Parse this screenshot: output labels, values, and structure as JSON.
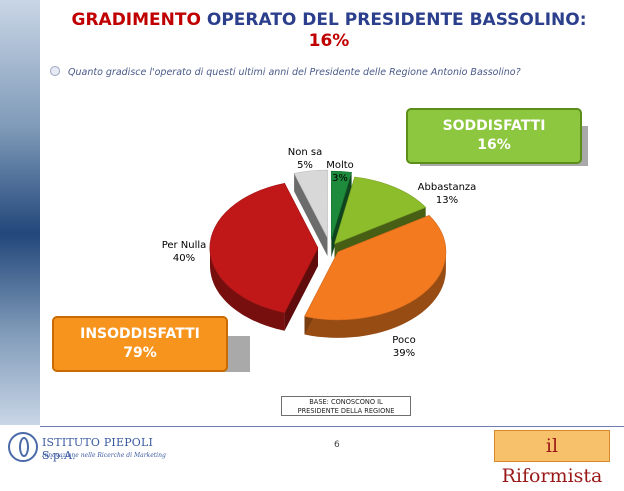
{
  "title": {
    "prefix": "GRADIMENTO",
    "main": " OPERATO DEL PRESIDENTE BASSOLINO:",
    "pct": "16%"
  },
  "question": "Quanto gradisce l'operato di questi ultimi anni del Presidente delle Regione Antonio Bassolino?",
  "soddisfatti": {
    "label": "SODDISFATTI",
    "value": "16%"
  },
  "insoddisfatti": {
    "label": "INSODDISFATTI",
    "value": "79%"
  },
  "base": {
    "line1": "BASE: CONOSCONO IL",
    "line2": "PRESIDENTE DELLA REGIONE"
  },
  "page_number": "6",
  "footer": {
    "left_logo_name": "ISTITUTO PIEPOLI S.p.A.",
    "left_logo_tagline": "Innovazione nelle Ricerche di Marketing",
    "right_logo": "il Riformista"
  },
  "colors": {
    "molto": "#1e8a3c",
    "abbastanza": "#8dbd2a",
    "poco": "#f47a20",
    "per_nulla": "#c01818",
    "non_sa": "#d8d8d8"
  },
  "chart_data": {
    "type": "pie",
    "title": "",
    "categories": [
      "Molto",
      "Abbastanza",
      "Poco",
      "Per Nulla",
      "Non sa"
    ],
    "values": [
      3,
      13,
      39,
      40,
      5
    ],
    "value_labels": [
      "3%",
      "13%",
      "39%",
      "40%",
      "5%"
    ],
    "exploded": true,
    "three_d": true
  }
}
